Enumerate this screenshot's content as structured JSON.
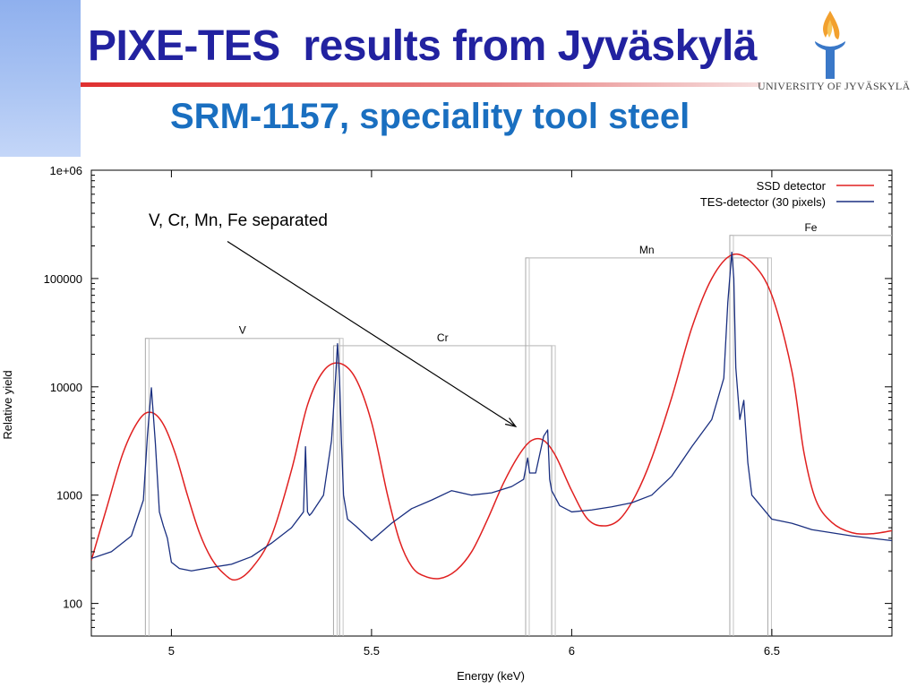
{
  "slide": {
    "title": "PIXE-TES  results from Jyväskylä",
    "subtitle": "SRM-1157, speciality tool steel",
    "logo_text": "UNIVERSITY OF JYVÄSKYLÄ",
    "logo_icon": "torch-icon",
    "colors": {
      "title": "#2222a0",
      "subtitle": "#1a6fc0",
      "accent_rule": "#e03030"
    }
  },
  "chart_data": {
    "type": "line",
    "xlabel": "Energy (keV)",
    "ylabel": "Relative yield",
    "xlim": [
      4.8,
      6.8
    ],
    "ylim": [
      50,
      1000000
    ],
    "yscale": "log",
    "grid": false,
    "legend_position": "top-right",
    "xticks": [
      5,
      5.5,
      6,
      6.5
    ],
    "xtick_labels": [
      "5",
      "5.5",
      "6",
      "6.5"
    ],
    "yticks": [
      100,
      1000,
      10000,
      100000,
      1000000
    ],
    "ytick_labels": [
      "100",
      "1000",
      "10000",
      "100000",
      "1e+06"
    ],
    "series": [
      {
        "name": "SSD detector",
        "color": "#e02020",
        "x": [
          4.8,
          4.84,
          4.88,
          4.92,
          4.95,
          4.98,
          5.01,
          5.04,
          5.07,
          5.1,
          5.13,
          5.16,
          5.2,
          5.25,
          5.3,
          5.34,
          5.38,
          5.42,
          5.46,
          5.5,
          5.54,
          5.57,
          5.6,
          5.63,
          5.67,
          5.71,
          5.75,
          5.79,
          5.83,
          5.87,
          5.9,
          5.93,
          5.96,
          6.0,
          6.04,
          6.08,
          6.12,
          6.16,
          6.2,
          6.25,
          6.3,
          6.35,
          6.4,
          6.45,
          6.5,
          6.55,
          6.58,
          6.61,
          6.65,
          6.7,
          6.75,
          6.8
        ],
        "y": [
          250,
          800,
          2500,
          5000,
          5800,
          4500,
          2400,
          1000,
          450,
          260,
          190,
          165,
          210,
          420,
          1700,
          6800,
          14000,
          16500,
          12000,
          4700,
          1000,
          380,
          220,
          180,
          170,
          200,
          300,
          600,
          1300,
          2400,
          3200,
          3200,
          2300,
          1100,
          600,
          520,
          600,
          1000,
          2200,
          8000,
          35000,
          100000,
          165000,
          140000,
          70000,
          14000,
          2500,
          900,
          560,
          450,
          440,
          470
        ]
      },
      {
        "name": "TES-detector (30 pixels)",
        "color": "#1a2f80",
        "x": [
          4.8,
          4.85,
          4.9,
          4.93,
          4.94,
          4.95,
          4.96,
          4.97,
          4.98,
          4.99,
          5.0,
          5.02,
          5.05,
          5.1,
          5.15,
          5.2,
          5.25,
          5.3,
          5.33,
          5.335,
          5.34,
          5.345,
          5.35,
          5.38,
          5.4,
          5.41,
          5.415,
          5.42,
          5.425,
          5.43,
          5.44,
          5.46,
          5.5,
          5.55,
          5.6,
          5.65,
          5.7,
          5.75,
          5.8,
          5.85,
          5.88,
          5.89,
          5.895,
          5.91,
          5.93,
          5.94,
          5.945,
          5.95,
          5.97,
          6.0,
          6.05,
          6.1,
          6.15,
          6.2,
          6.25,
          6.3,
          6.35,
          6.38,
          6.39,
          6.4,
          6.405,
          6.41,
          6.42,
          6.43,
          6.44,
          6.45,
          6.5,
          6.55,
          6.6,
          6.7,
          6.8
        ],
        "y": [
          260,
          300,
          420,
          900,
          3500,
          9800,
          3000,
          700,
          520,
          400,
          240,
          210,
          200,
          215,
          230,
          270,
          360,
          500,
          700,
          2800,
          700,
          650,
          680,
          1000,
          3200,
          12000,
          25000,
          12000,
          3000,
          1000,
          600,
          520,
          380,
          550,
          750,
          900,
          1100,
          1000,
          1050,
          1200,
          1400,
          2200,
          1600,
          1600,
          3500,
          4000,
          1400,
          1100,
          800,
          700,
          730,
          780,
          850,
          1000,
          1500,
          2800,
          5000,
          12000,
          60000,
          175000,
          100000,
          15000,
          5000,
          7500,
          2000,
          1000,
          600,
          550,
          480,
          420,
          380
        ]
      }
    ],
    "element_windows": [
      {
        "label": "V",
        "x0": 4.935,
        "x1": 5.42,
        "y": 28000
      },
      {
        "label": "Cr",
        "x0": 5.405,
        "x1": 5.95,
        "y": 24000
      },
      {
        "label": "Mn",
        "x0": 5.885,
        "x1": 6.49,
        "y": 155000
      },
      {
        "label": "Fe",
        "x0": 6.395,
        "x1": 6.9,
        "y": 250000
      }
    ],
    "annotation": {
      "text": "V, Cr, Mn, Fe separated",
      "arrow_from": [
        5.14,
        220000
      ],
      "arrow_to": [
        5.86,
        4300
      ]
    }
  }
}
